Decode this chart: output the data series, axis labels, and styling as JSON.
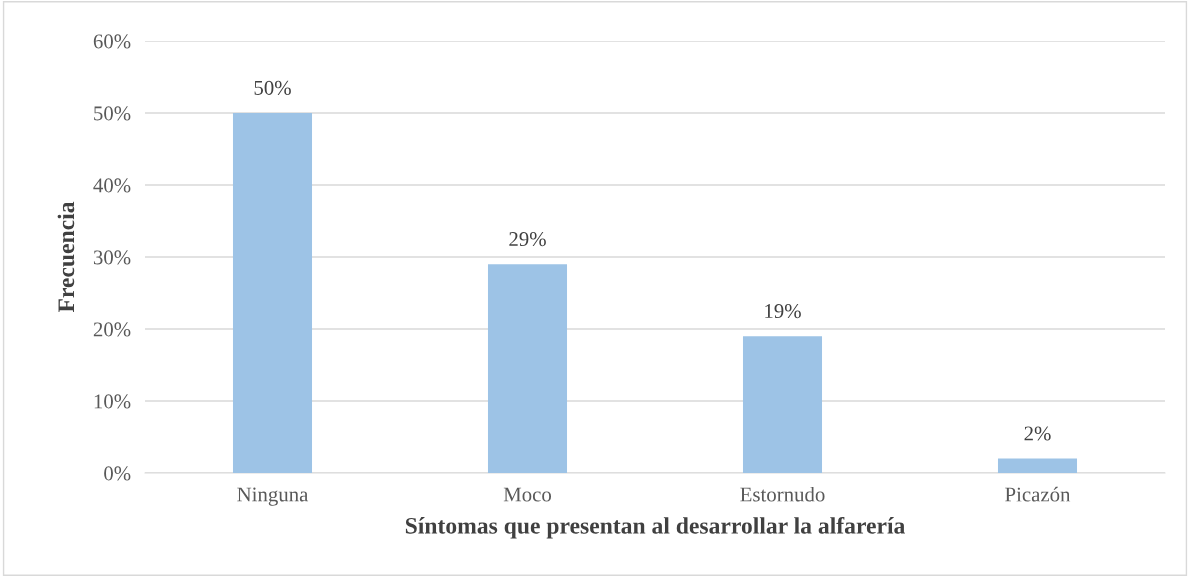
{
  "chart_data": {
    "type": "bar",
    "categories": [
      "Ninguna",
      "Moco",
      "Estornudo",
      "Picazón"
    ],
    "values": [
      50,
      29,
      19,
      2
    ],
    "color": "#9dc3e6",
    "xlabel": "Síntomas que presentan al desarrollar la alfarería",
    "ylabel": "Frecuencia",
    "ylim": [
      0,
      60
    ],
    "yticks": [
      {
        "value": 0,
        "label": "0%"
      },
      {
        "value": 10,
        "label": "10%"
      },
      {
        "value": 20,
        "label": "20%"
      },
      {
        "value": 30,
        "label": "30%"
      },
      {
        "value": 40,
        "label": "40%"
      },
      {
        "value": 50,
        "label": "50%"
      },
      {
        "value": 60,
        "label": "60%"
      }
    ],
    "value_labels": [
      "50%",
      "29%",
      "19%",
      "2%"
    ],
    "grid": "y"
  }
}
